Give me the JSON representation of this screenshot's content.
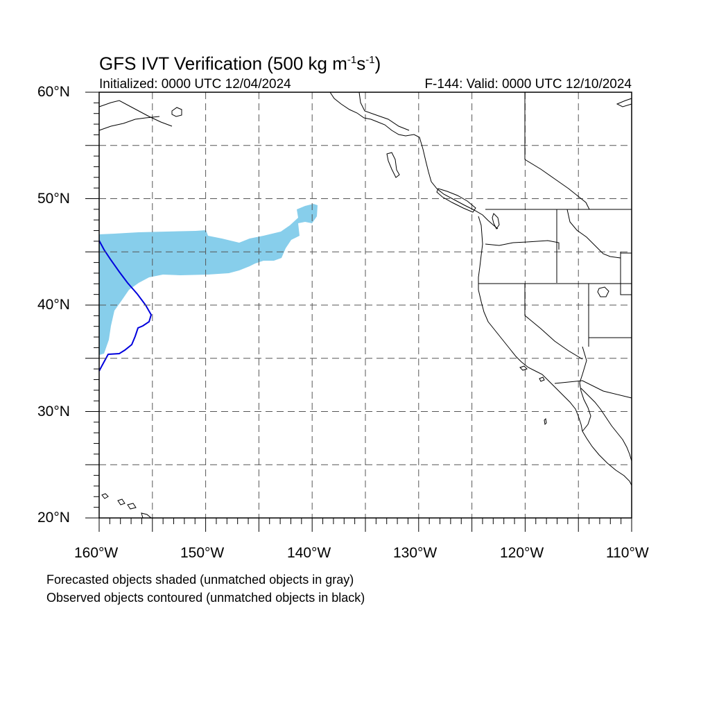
{
  "title": {
    "main": "GFS IVT Verification (500 kg m",
    "sup1": "-1",
    "mid": "s",
    "sup2": "-1",
    "end": ")"
  },
  "subtitle": {
    "initialized": "Initialized: 0000 UTC 12/04/2024",
    "valid": "F-144: Valid: 0000 UTC 12/10/2024"
  },
  "map": {
    "lon_range": [
      -160,
      -110
    ],
    "lat_range": [
      20,
      60
    ],
    "grid_lon_step": 5,
    "grid_lat_step": 5,
    "grid_style": "dashed",
    "lat_labels": [
      "60°N",
      "50°N",
      "40°N",
      "30°N",
      "20°N"
    ],
    "lon_labels": [
      "160°W",
      "150°W",
      "140°W",
      "130°W",
      "120°W",
      "110°W"
    ],
    "forecast_fill_color": "#87CEEB",
    "observed_contour_color": "#0000DD",
    "coast_color": "#000000"
  },
  "legend": {
    "forecast_note": "Forecasted objects shaded (unmatched objects in gray)",
    "observed_note": "Observed objects contoured (unmatched objects in black)"
  }
}
